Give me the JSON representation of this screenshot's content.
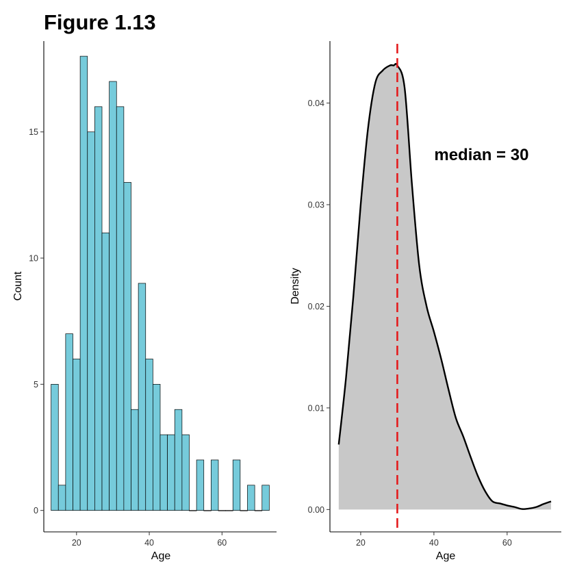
{
  "figure_title": "Figure 1.13",
  "chart_data": [
    {
      "type": "bar",
      "subtype": "histogram",
      "title": "",
      "xlabel": "Age",
      "ylabel": "Count",
      "xlim": [
        11,
        75
      ],
      "ylim": [
        -0.85,
        18.6
      ],
      "xticks": [
        20,
        40,
        60
      ],
      "yticks": [
        0,
        5,
        10,
        15
      ],
      "grid": false,
      "bin_width": 2,
      "fill_color": "#76CBDB",
      "edge_color": "#000000",
      "bins": [
        {
          "x": 14,
          "count": 5
        },
        {
          "x": 16,
          "count": 1
        },
        {
          "x": 18,
          "count": 7
        },
        {
          "x": 20,
          "count": 6
        },
        {
          "x": 22,
          "count": 18
        },
        {
          "x": 24,
          "count": 15
        },
        {
          "x": 26,
          "count": 16
        },
        {
          "x": 28,
          "count": 11
        },
        {
          "x": 30,
          "count": 17
        },
        {
          "x": 32,
          "count": 16
        },
        {
          "x": 34,
          "count": 13
        },
        {
          "x": 36,
          "count": 4
        },
        {
          "x": 38,
          "count": 9
        },
        {
          "x": 40,
          "count": 6
        },
        {
          "x": 42,
          "count": 5
        },
        {
          "x": 44,
          "count": 3
        },
        {
          "x": 46,
          "count": 3
        },
        {
          "x": 48,
          "count": 4
        },
        {
          "x": 50,
          "count": 3
        },
        {
          "x": 52,
          "count": 0
        },
        {
          "x": 54,
          "count": 2
        },
        {
          "x": 56,
          "count": 0
        },
        {
          "x": 58,
          "count": 2
        },
        {
          "x": 60,
          "count": 0
        },
        {
          "x": 62,
          "count": 0
        },
        {
          "x": 64,
          "count": 2
        },
        {
          "x": 66,
          "count": 0
        },
        {
          "x": 68,
          "count": 1
        },
        {
          "x": 70,
          "count": 0
        },
        {
          "x": 72,
          "count": 1
        }
      ]
    },
    {
      "type": "area",
      "subtype": "density",
      "title": "",
      "xlabel": "Age",
      "ylabel": "Density",
      "xlim": [
        11.6,
        74.8
      ],
      "ylim": [
        -0.0022,
        0.0461
      ],
      "xticks": [
        20,
        40,
        60
      ],
      "yticks": [
        0.0,
        0.01,
        0.02,
        0.03,
        0.04
      ],
      "ytick_labels": [
        "0.00",
        "0.01",
        "0.02",
        "0.03",
        "0.04"
      ],
      "grid": false,
      "fill_color": "#C8C8C8",
      "line_color": "#000000",
      "x": [
        14,
        16,
        18,
        20,
        22,
        24,
        26,
        28,
        29,
        30,
        32,
        34,
        36,
        38,
        40,
        42,
        44,
        46,
        48,
        50,
        52,
        54,
        56,
        58,
        60,
        62,
        64,
        66,
        68,
        70,
        72
      ],
      "y": [
        0.0064,
        0.013,
        0.021,
        0.03,
        0.0375,
        0.042,
        0.0432,
        0.0437,
        0.0437,
        0.0437,
        0.0415,
        0.032,
        0.024,
        0.02,
        0.0175,
        0.0148,
        0.0118,
        0.009,
        0.0072,
        0.0052,
        0.0033,
        0.0018,
        0.0008,
        0.0006,
        0.0004,
        0.00025,
        5e-05,
        0.0001,
        0.00025,
        0.00055,
        0.0008
      ],
      "median_line": {
        "x": 30,
        "color": "#E41A1C",
        "style": "dashed"
      },
      "annotation": {
        "text": "median = 30",
        "x": 53,
        "y": 0.0348
      }
    }
  ]
}
